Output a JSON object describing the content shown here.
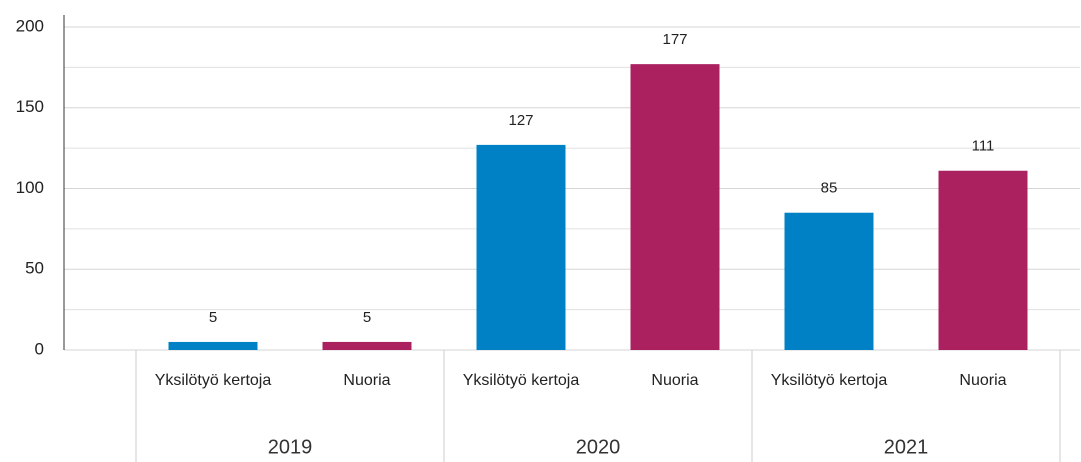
{
  "chart_data": {
    "type": "bar",
    "groups": [
      "2019",
      "2020",
      "2021"
    ],
    "categories": [
      "Yksilötyö kertoja",
      "Nuoria",
      "Yksilötyö kertoja",
      "Nuoria",
      "Yksilötyö kertoja",
      "Nuoria"
    ],
    "values": [
      5,
      5,
      127,
      177,
      85,
      111
    ],
    "colors": [
      "#0081c6",
      "#ab2160",
      "#0081c6",
      "#ab2160",
      "#0081c6",
      "#ab2160"
    ],
    "ylim": [
      0,
      200
    ],
    "yticks": [
      0,
      50,
      100,
      150,
      200
    ],
    "minor_yticks": [
      25,
      75,
      125,
      175
    ],
    "grid": true
  }
}
